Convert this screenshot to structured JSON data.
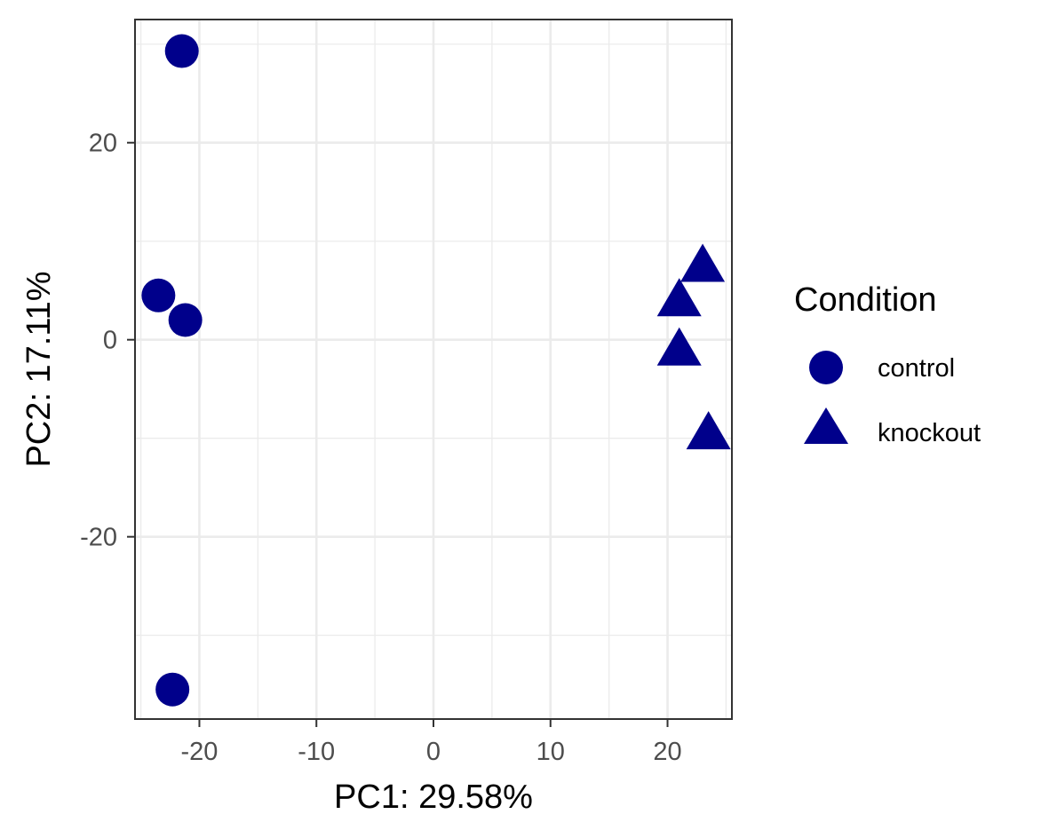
{
  "chart_data": {
    "type": "scatter",
    "xlabel": "PC1: 29.58%",
    "ylabel": "PC2: 17.11%",
    "xlim": [
      -25.5,
      25.5
    ],
    "ylim": [
      -38.5,
      32.5
    ],
    "x_ticks": [
      -20,
      -10,
      0,
      10,
      20
    ],
    "y_ticks": [
      -20,
      0,
      20
    ],
    "grid": true,
    "legend": {
      "title": "Condition",
      "position": "right",
      "entries": [
        {
          "label": "control",
          "shape": "circle"
        },
        {
          "label": "knockout",
          "shape": "triangle"
        }
      ]
    },
    "marker_color": "#00008B",
    "series": [
      {
        "name": "control",
        "shape": "circle",
        "points": [
          {
            "x": -21.5,
            "y": 29.3
          },
          {
            "x": -23.5,
            "y": 4.5
          },
          {
            "x": -21.2,
            "y": 2.0
          },
          {
            "x": -22.3,
            "y": -35.5
          }
        ]
      },
      {
        "name": "knockout",
        "shape": "triangle",
        "points": [
          {
            "x": 23.0,
            "y": 7.5
          },
          {
            "x": 21.0,
            "y": 4.0
          },
          {
            "x": 21.0,
            "y": -1.0
          },
          {
            "x": 23.5,
            "y": -9.5
          }
        ]
      }
    ]
  }
}
